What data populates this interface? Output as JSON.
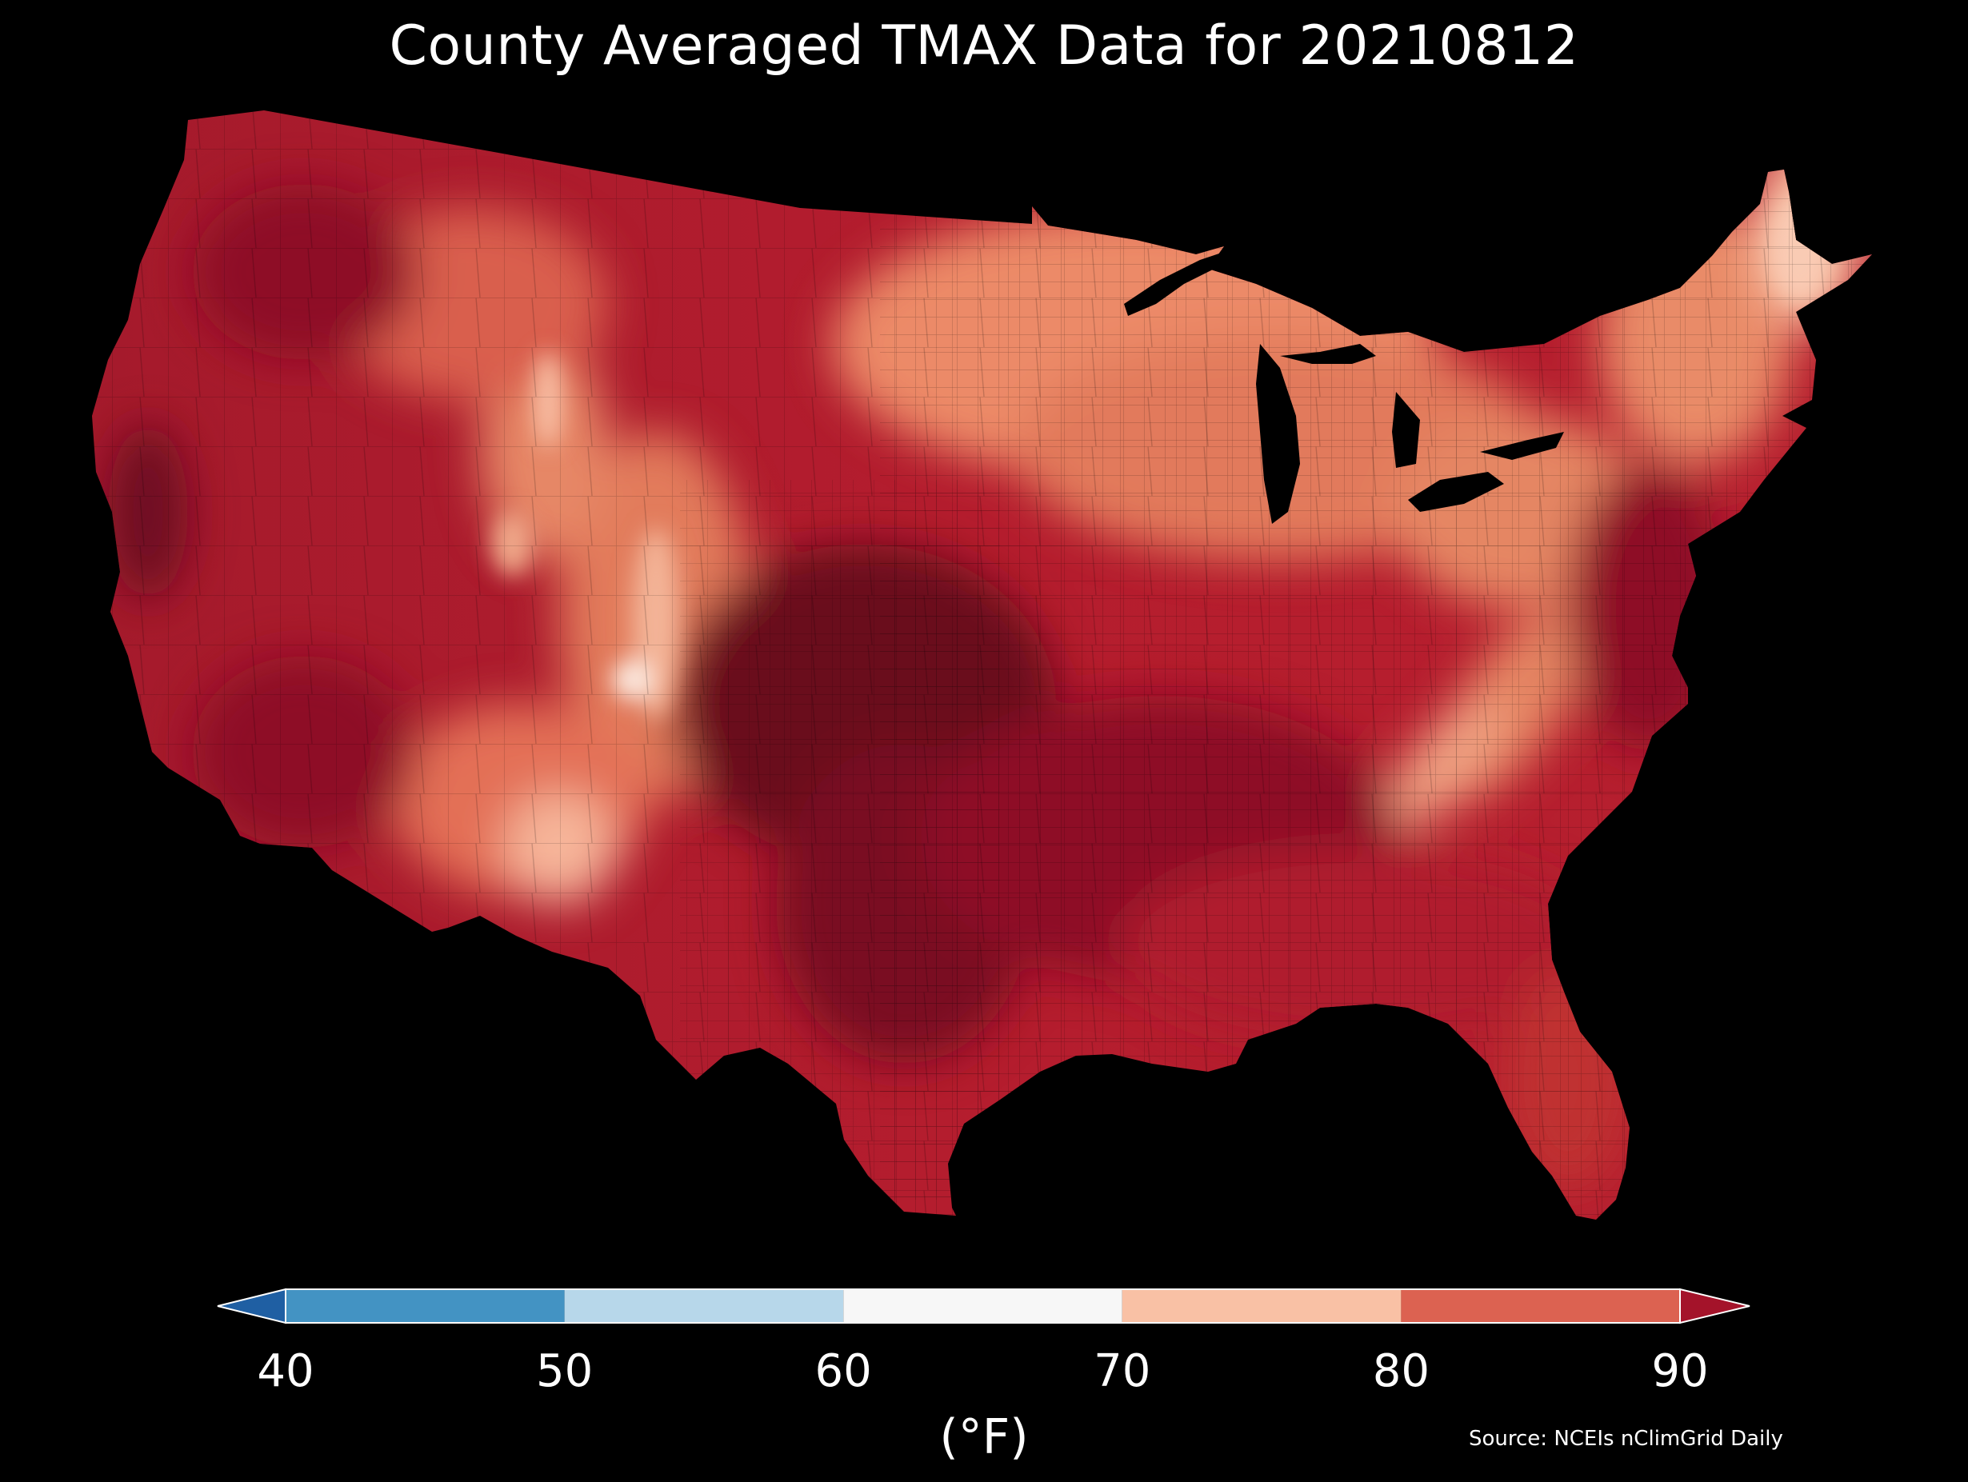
{
  "title": "County Averaged TMAX Data for 20210812",
  "colorbar": {
    "ticks": [
      "40",
      "50",
      "60",
      "70",
      "80",
      "90"
    ],
    "bins": [
      {
        "from": 40,
        "to": 50,
        "color": "#4393c3"
      },
      {
        "from": 50,
        "to": 60,
        "color": "#b7d7ea"
      },
      {
        "from": 60,
        "to": 70,
        "color": "#f7f7f7"
      },
      {
        "from": 70,
        "to": 80,
        "color": "#f9c1a5"
      },
      {
        "from": 80,
        "to": 90,
        "color": "#dc6251"
      }
    ],
    "under_color": "#1f5fa3",
    "over_color": "#a4132a",
    "unit": "(°F)"
  },
  "map_colors": {
    "hottest": "#67001f",
    "very_hot": "#8e0c26",
    "hot": "#b2182b",
    "warm": "#cc3b3d",
    "mild": "#e07256",
    "cool": "#f3a584",
    "coolest": "#f9cbb4",
    "lakes": "#000000"
  },
  "source": "Source: NCEIs nClimGrid Daily"
}
